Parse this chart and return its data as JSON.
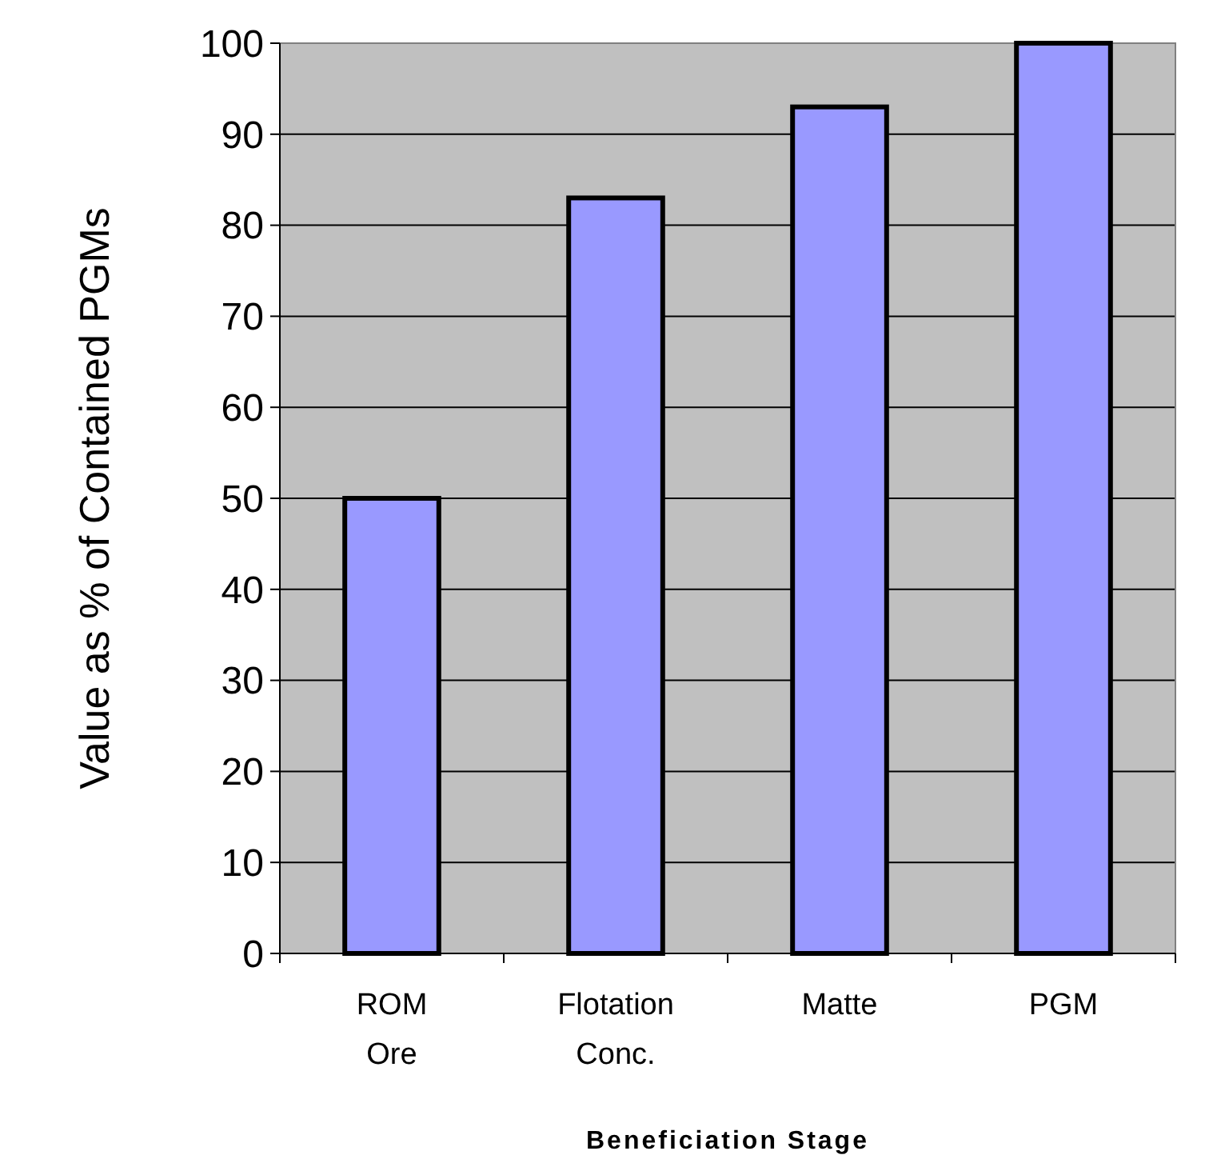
{
  "chart_data": {
    "type": "bar",
    "xlabel": "Beneficiation Stage",
    "ylabel": "Value as % of Contained PGMs",
    "categories": [
      "ROM Ore",
      "Flotation Conc.",
      "Matte",
      "PGM"
    ],
    "values": [
      50,
      83,
      93,
      100
    ],
    "color": "#9999ff",
    "ylim": [
      0,
      100
    ],
    "yticks": [
      0,
      10,
      20,
      30,
      40,
      50,
      60,
      70,
      80,
      90,
      100
    ],
    "grid": "y"
  }
}
